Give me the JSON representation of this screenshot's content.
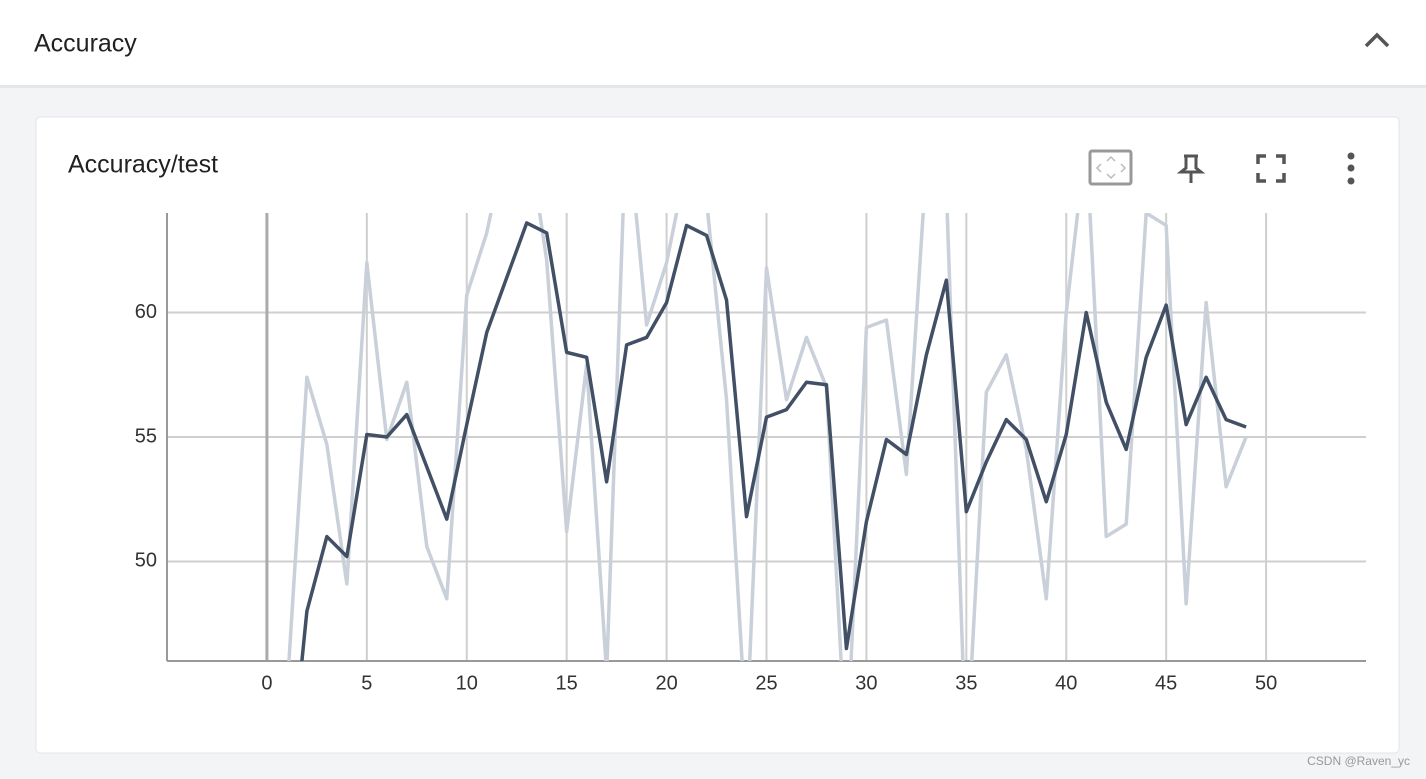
{
  "header": {
    "title": "Accuracy"
  },
  "card": {
    "title": "Accuracy/test"
  },
  "watermark": "CSDN @Raven_yc",
  "chart_data": {
    "type": "line",
    "x": [
      1,
      2,
      3,
      4,
      5,
      6,
      7,
      8,
      9,
      10,
      11,
      12,
      13,
      14,
      15,
      16,
      17,
      18,
      19,
      20,
      21,
      22,
      23,
      24,
      25,
      26,
      27,
      28,
      29,
      30,
      31,
      32,
      33,
      34,
      35,
      36,
      37,
      38,
      39,
      40,
      41,
      42,
      43,
      44,
      45,
      46,
      47,
      48,
      49
    ],
    "series": [
      {
        "color": "#c9d0d9",
        "values": [
          44.7,
          57.4,
          54.7,
          49.1,
          62.0,
          54.9,
          57.2,
          50.6,
          48.5,
          60.7,
          63.2,
          67.0,
          67.5,
          62.1,
          51.2,
          57.9,
          45.5,
          68.0,
          59.5,
          62.0,
          66.0,
          64.5,
          56.5,
          43.0,
          61.8,
          56.5,
          59.0,
          57.0,
          42.0,
          59.4,
          59.7,
          53.5,
          66.0,
          65.0,
          42.0,
          56.8,
          58.3,
          54.5,
          48.5,
          60.0,
          67.0,
          51.0,
          51.5,
          64.0,
          63.5,
          48.3,
          60.4,
          53.0,
          55.0
        ]
      },
      {
        "color": "#425066",
        "values": [
          40.0,
          48.0,
          51.0,
          50.2,
          55.1,
          55.0,
          55.9,
          53.8,
          51.7,
          55.5,
          59.2,
          61.4,
          63.6,
          63.2,
          58.4,
          58.2,
          53.2,
          58.7,
          59.0,
          60.4,
          63.5,
          63.1,
          60.5,
          51.8,
          55.8,
          56.1,
          57.2,
          57.1,
          46.5,
          51.6,
          54.9,
          54.3,
          58.3,
          61.3,
          52.0,
          54.0,
          55.7,
          54.9,
          52.4,
          55.1,
          60.0,
          56.4,
          54.5,
          58.2,
          60.3,
          55.5,
          57.4,
          55.7,
          55.4
        ]
      }
    ],
    "xlim": [
      -5,
      55
    ],
    "xticks": [
      0,
      5,
      10,
      15,
      20,
      25,
      30,
      35,
      40,
      45,
      50
    ],
    "ylim": [
      46,
      64
    ],
    "yticks": [
      50,
      55,
      60
    ],
    "grid": true
  }
}
